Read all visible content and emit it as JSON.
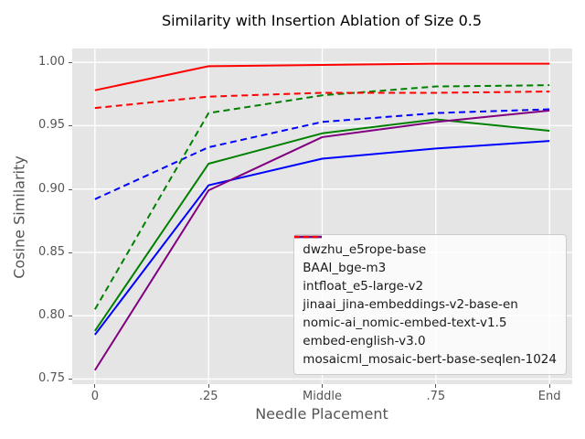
{
  "chart_data": {
    "type": "line",
    "title": "Similarity with Insertion Ablation of Size 0.5",
    "xlabel": "Needle Placement",
    "ylabel": "Cosine Similarity",
    "categories": [
      "0",
      ".25",
      "Middle",
      ".75",
      "End"
    ],
    "ytick_values": [
      0.75,
      0.8,
      0.85,
      0.9,
      0.95,
      1.0
    ],
    "ytick_labels": [
      "0.75",
      "0.80",
      "0.85",
      "0.90",
      "0.95",
      "1.00"
    ],
    "xlim": [
      -0.2,
      4.2
    ],
    "ylim": [
      0.746,
      1.011
    ],
    "grid": true,
    "legend_position": "lower right",
    "series": [
      {
        "name": "dwzhu_e5rope-base",
        "color": "#008000",
        "dash": "solid",
        "values": [
          0.788,
          0.92,
          0.944,
          0.955,
          0.946
        ]
      },
      {
        "name": "BAAI_bge-m3",
        "color": "#0000ff",
        "dash": "solid",
        "values": [
          0.785,
          0.903,
          0.924,
          0.932,
          0.938
        ]
      },
      {
        "name": "intfloat_e5-large-v2",
        "color": "#0000ff",
        "dash": "dashed",
        "values": [
          0.892,
          0.933,
          0.953,
          0.96,
          0.963
        ]
      },
      {
        "name": "jinaai_jina-embeddings-v2-base-en",
        "color": "#ff0000",
        "dash": "solid",
        "values": [
          0.978,
          0.997,
          0.998,
          0.999,
          0.999
        ]
      },
      {
        "name": "nomic-ai_nomic-embed-text-v1.5",
        "color": "#008000",
        "dash": "dashed",
        "values": [
          0.805,
          0.96,
          0.974,
          0.981,
          0.982
        ]
      },
      {
        "name": "embed-english-v3.0",
        "color": "#800080",
        "dash": "solid",
        "values": [
          0.757,
          0.899,
          0.941,
          0.953,
          0.962
        ]
      },
      {
        "name": "mosaicml_mosaic-bert-base-seqlen-1024",
        "color": "#ff0000",
        "dash": "dashed",
        "values": [
          0.964,
          0.973,
          0.976,
          0.976,
          0.977
        ]
      }
    ],
    "colors": {
      "axes_background": "#e5e5e5",
      "grid": "#ffffff",
      "tick_text": "#555555",
      "title_text": "#000000",
      "legend_text": "#1a1a1a",
      "legend_border": "#cccccc"
    }
  }
}
